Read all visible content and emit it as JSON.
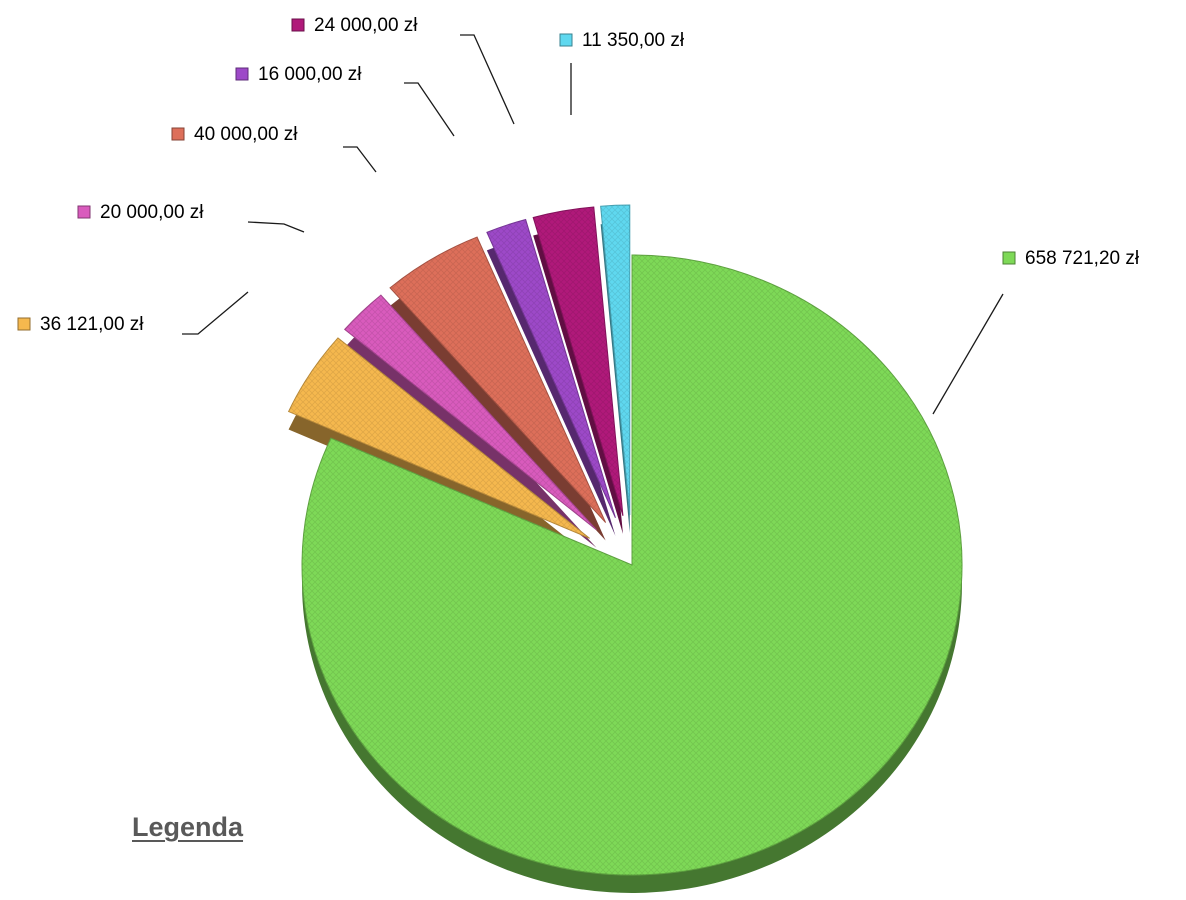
{
  "chart_data": {
    "type": "pie",
    "style": "3d-exploded",
    "values": [
      658721.2,
      36121.0,
      20000.0,
      40000.0,
      16000.0,
      24000.0,
      11350.0
    ],
    "labels": [
      "658 721,20 zł",
      "36 121,00 zł",
      "20 000,00 zł",
      "40 000,00 zł",
      "16 000,00 zł",
      "24 000,00 zł",
      "11 350,00 zł"
    ],
    "colors": [
      "#7ed957",
      "#f5b84e",
      "#d95bbd",
      "#dd6f5a",
      "#9d49c8",
      "#b0197a",
      "#5fd8ef"
    ],
    "legend": "none",
    "data_labels": "outside-with-leader-lines"
  },
  "legend_title": "Legenda"
}
